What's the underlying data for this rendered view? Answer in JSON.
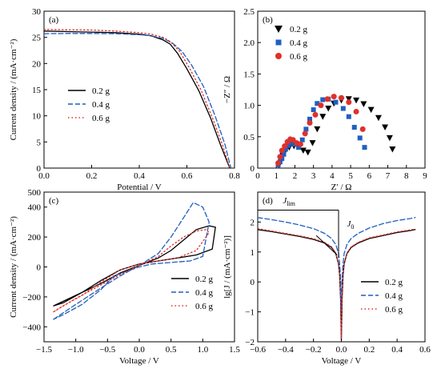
{
  "chart_data": [
    {
      "type": "line",
      "panel_label": "(a)",
      "xlabel": "Potential / V",
      "ylabel": "Current density / (mA·cm⁻²)",
      "xlim": [
        0,
        0.8
      ],
      "ylim": [
        0,
        30
      ],
      "xticks": [
        "0.0",
        "0.2",
        "0.4",
        "0.6",
        "0.8"
      ],
      "yticks": [
        "0",
        "5",
        "10",
        "15",
        "20",
        "25",
        "30"
      ],
      "legend_position": "center-left",
      "series": [
        {
          "name": "0.2 g",
          "color": "#000000",
          "dash": "solid",
          "x": [
            0,
            0.1,
            0.2,
            0.3,
            0.4,
            0.45,
            0.5,
            0.53,
            0.56,
            0.6,
            0.65,
            0.7,
            0.74,
            0.78
          ],
          "y": [
            26.2,
            26.1,
            26.0,
            25.9,
            25.6,
            25.3,
            24.5,
            23.7,
            22.0,
            19.0,
            14.8,
            9.5,
            4.6,
            0
          ]
        },
        {
          "name": "0.4 g",
          "color": "#1f5fbf",
          "dash": "dashed",
          "x": [
            0,
            0.1,
            0.2,
            0.3,
            0.4,
            0.45,
            0.5,
            0.54,
            0.58,
            0.62,
            0.67,
            0.72,
            0.76,
            0.785
          ],
          "y": [
            25.7,
            25.75,
            25.75,
            25.7,
            25.5,
            25.3,
            24.8,
            23.9,
            22.3,
            19.7,
            15.6,
            9.8,
            4.5,
            0
          ]
        },
        {
          "name": "0.6 g",
          "color": "#e0302a",
          "dash": "dotted",
          "x": [
            0,
            0.1,
            0.2,
            0.3,
            0.4,
            0.45,
            0.5,
            0.53,
            0.57,
            0.61,
            0.66,
            0.71,
            0.75,
            0.78
          ],
          "y": [
            26.5,
            26.45,
            26.4,
            26.2,
            25.9,
            25.6,
            25.0,
            24.2,
            22.3,
            19.2,
            14.9,
            9.3,
            4.4,
            0
          ]
        }
      ]
    },
    {
      "type": "scatter",
      "panel_label": "(b)",
      "xlabel": "Z′ / Ω",
      "ylabel": "−Z″ / Ω",
      "xlim": [
        0,
        9
      ],
      "ylim": [
        0,
        2.5
      ],
      "xticks": [
        "0",
        "1",
        "2",
        "3",
        "4",
        "5",
        "6",
        "7",
        "8",
        "9"
      ],
      "yticks": [
        "0",
        "0.5",
        "1.0",
        "1.5",
        "2.0",
        "2.5"
      ],
      "legend_position": "top-left",
      "series": [
        {
          "name": "0.2 g",
          "color": "#000000",
          "marker": "triangle-down",
          "x": [
            1.15,
            1.25,
            1.35,
            1.5,
            1.7,
            1.95,
            2.2,
            2.45,
            2.7,
            2.95,
            3.2,
            3.5,
            3.8,
            4.1,
            4.5,
            4.9,
            5.3,
            5.7,
            6.1,
            6.5,
            6.85,
            7.1,
            7.25
          ],
          "y": [
            0.05,
            0.12,
            0.2,
            0.28,
            0.33,
            0.35,
            0.34,
            0.28,
            0.25,
            0.4,
            0.62,
            0.82,
            0.95,
            1.03,
            1.08,
            1.1,
            1.08,
            1.02,
            0.93,
            0.8,
            0.65,
            0.48,
            0.3
          ]
        },
        {
          "name": "0.4 g",
          "color": "#1f5fbf",
          "marker": "square",
          "x": [
            1.1,
            1.2,
            1.3,
            1.4,
            1.5,
            1.65,
            1.8,
            2.0,
            2.2,
            2.4,
            2.6,
            2.8,
            3.0,
            3.2,
            3.5,
            3.8,
            4.2,
            4.6,
            4.9,
            5.2,
            5.5,
            5.75
          ],
          "y": [
            0.05,
            0.1,
            0.15,
            0.22,
            0.3,
            0.36,
            0.4,
            0.38,
            0.33,
            0.45,
            0.62,
            0.78,
            0.93,
            1.03,
            1.09,
            1.1,
            1.05,
            0.95,
            0.82,
            0.65,
            0.48,
            0.33
          ]
        },
        {
          "name": "0.6 g",
          "color": "#e0302a",
          "marker": "circle",
          "x": [
            1.1,
            1.2,
            1.3,
            1.45,
            1.6,
            1.75,
            1.9,
            2.1,
            2.3,
            2.55,
            2.8,
            3.1,
            3.4,
            3.75,
            4.1,
            4.5,
            4.9,
            5.3,
            5.65
          ],
          "y": [
            0.08,
            0.18,
            0.28,
            0.35,
            0.42,
            0.46,
            0.45,
            0.4,
            0.38,
            0.55,
            0.72,
            0.85,
            1.0,
            1.1,
            1.14,
            1.12,
            1.05,
            0.9,
            0.62
          ]
        }
      ]
    },
    {
      "type": "line",
      "panel_label": "(c)",
      "xlabel": "Voltage / V",
      "ylabel": "Current density / (mA·cm⁻²)",
      "xlim": [
        -1.5,
        1.5
      ],
      "ylim": [
        -500,
        500
      ],
      "xticks": [
        "−1.5",
        "−1.0",
        "−0.5",
        "0.0",
        "0.5",
        "1.0",
        "1.5"
      ],
      "yticks": [
        "−400",
        "−200",
        "0",
        "200",
        "400"
      ],
      "ytick_extra": [
        "500"
      ],
      "legend_position": "bottom-right",
      "series": [
        {
          "name": "0.2 g",
          "color": "#000000",
          "dash": "solid",
          "x": [
            -1.35,
            -1.0,
            -0.6,
            -0.3,
            0.0,
            0.3,
            0.5,
            0.7,
            0.9,
            1.1,
            1.2,
            1.15,
            0.9,
            0.6,
            0.3,
            0.0,
            -0.3,
            -0.6,
            -0.9,
            -1.2,
            -1.35
          ],
          "y": [
            -260,
            -190,
            -110,
            -40,
            10,
            60,
            110,
            180,
            250,
            275,
            265,
            120,
            80,
            60,
            40,
            20,
            -20,
            -90,
            -170,
            -240,
            -260
          ]
        },
        {
          "name": "0.4 g",
          "color": "#1f5fbf",
          "dash": "dashed",
          "x": [
            -1.35,
            -1.0,
            -0.6,
            -0.3,
            0.0,
            0.3,
            0.5,
            0.7,
            0.85,
            1.0,
            1.1,
            1.0,
            0.8,
            0.5,
            0.2,
            0.0,
            -0.2,
            -0.4,
            -0.6,
            -0.9,
            -1.2,
            -1.35
          ],
          "y": [
            -350,
            -250,
            -140,
            -60,
            10,
            90,
            200,
            330,
            430,
            400,
            300,
            70,
            40,
            30,
            20,
            0,
            -30,
            -60,
            -150,
            -250,
            -320,
            -350
          ]
        },
        {
          "name": "0.6 g",
          "color": "#e0302a",
          "dash": "dotted",
          "x": [
            -1.35,
            -1.0,
            -0.6,
            -0.3,
            0.0,
            0.3,
            0.5,
            0.7,
            0.9,
            1.05,
            1.1,
            0.9,
            0.6,
            0.3,
            0.0,
            -0.3,
            -0.6,
            -0.9,
            -1.2,
            -1.35
          ],
          "y": [
            -300,
            -210,
            -120,
            -50,
            10,
            70,
            140,
            200,
            240,
            250,
            230,
            110,
            60,
            40,
            20,
            -20,
            -100,
            -190,
            -260,
            -300
          ]
        }
      ]
    },
    {
      "type": "line",
      "panel_label": "(d)",
      "xlabel": "Voltage / V",
      "ylabel": "lg[J / (mA·cm⁻²)]",
      "xlim": [
        -0.6,
        0.6
      ],
      "ylim": [
        -2,
        3
      ],
      "xticks": [
        "−0.6",
        "−0.4",
        "−0.2",
        "0.0",
        "0.2",
        "0.4",
        "0.6"
      ],
      "yticks": [
        "−2",
        "−1",
        "0",
        "1",
        "2"
      ],
      "legend_position": "bottom-right",
      "annotations": [
        {
          "text": "J_lim",
          "sub": "lim",
          "base": "J"
        },
        {
          "text": "J_0",
          "sub": "0",
          "base": "J"
        }
      ],
      "series": [
        {
          "name": "0.2 g",
          "color": "#000000",
          "dash": "solid",
          "x": [
            -0.6,
            -0.5,
            -0.4,
            -0.3,
            -0.2,
            -0.12,
            -0.07,
            -0.04,
            -0.02,
            -0.012,
            -0.005,
            0.0,
            0.005,
            0.012,
            0.02,
            0.04,
            0.07,
            0.12,
            0.2,
            0.3,
            0.4,
            0.5,
            0.53
          ],
          "y": [
            1.75,
            1.68,
            1.6,
            1.52,
            1.42,
            1.3,
            1.15,
            0.95,
            0.6,
            0.2,
            -0.6,
            -1.95,
            -0.6,
            0.2,
            0.6,
            0.95,
            1.15,
            1.3,
            1.45,
            1.55,
            1.65,
            1.72,
            1.75
          ]
        },
        {
          "name": "0.4 g",
          "color": "#1f5fbf",
          "dash": "dashed",
          "x": [
            -0.6,
            -0.5,
            -0.4,
            -0.3,
            -0.2,
            -0.12,
            -0.07,
            -0.04,
            -0.02,
            -0.012,
            -0.005,
            0.0,
            0.005,
            0.012,
            0.02,
            0.04,
            0.07,
            0.12,
            0.2,
            0.3,
            0.4,
            0.5,
            0.53
          ],
          "y": [
            2.15,
            2.08,
            2.0,
            1.9,
            1.78,
            1.62,
            1.45,
            1.25,
            0.95,
            0.6,
            0.1,
            -1.0,
            0.1,
            0.6,
            0.95,
            1.25,
            1.45,
            1.62,
            1.8,
            1.95,
            2.05,
            2.12,
            2.15
          ]
        },
        {
          "name": "0.6 g",
          "color": "#e0302a",
          "dash": "dotted",
          "x": [
            -0.6,
            -0.5,
            -0.4,
            -0.3,
            -0.2,
            -0.12,
            -0.07,
            -0.04,
            -0.02,
            -0.012,
            -0.005,
            0.0,
            0.005,
            0.012,
            0.02,
            0.04,
            0.07,
            0.12,
            0.2,
            0.3,
            0.4,
            0.5,
            0.53
          ],
          "y": [
            1.78,
            1.7,
            1.62,
            1.54,
            1.44,
            1.32,
            1.17,
            0.97,
            0.62,
            0.22,
            -0.55,
            -1.9,
            -0.55,
            0.22,
            0.62,
            0.97,
            1.17,
            1.32,
            1.47,
            1.57,
            1.67,
            1.74,
            1.77
          ]
        }
      ]
    }
  ],
  "legend_labels": [
    "0.2 g",
    "0.4 g",
    "0.6 g"
  ]
}
